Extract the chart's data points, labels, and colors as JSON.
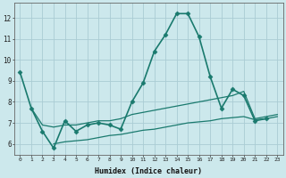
{
  "title": "",
  "xlabel": "Humidex (Indice chaleur)",
  "ylabel": "",
  "bg_color": "#cce8ec",
  "grid_color": "#aaccd4",
  "line_color": "#1a7a6e",
  "xlim": [
    -0.5,
    23.5
  ],
  "ylim": [
    5.5,
    12.7
  ],
  "yticks": [
    6,
    7,
    8,
    9,
    10,
    11,
    12
  ],
  "xticks": [
    0,
    1,
    2,
    3,
    4,
    5,
    6,
    7,
    8,
    9,
    10,
    11,
    12,
    13,
    14,
    15,
    16,
    17,
    18,
    19,
    20,
    21,
    22,
    23
  ],
  "series": [
    {
      "x": [
        0,
        1,
        2,
        3,
        4,
        5,
        6,
        7,
        8,
        9,
        10,
        11,
        12,
        13,
        14,
        15,
        16,
        17,
        18,
        19,
        20,
        21,
        22
      ],
      "y": [
        9.4,
        7.7,
        6.6,
        5.8,
        7.1,
        6.6,
        6.9,
        7.0,
        6.9,
        6.7,
        8.0,
        8.9,
        10.4,
        11.2,
        12.2,
        12.2,
        11.1,
        9.2,
        7.7,
        8.6,
        8.3,
        7.1,
        7.2
      ],
      "marker": "D",
      "markersize": 2.5,
      "linewidth": 1.2
    },
    {
      "x": [
        1,
        2,
        3,
        4,
        5,
        6,
        7,
        8,
        9,
        10,
        11,
        12,
        13,
        14,
        15,
        16,
        17,
        18,
        19,
        20,
        21,
        22,
        23
      ],
      "y": [
        7.7,
        6.9,
        6.8,
        6.9,
        6.9,
        7.0,
        7.1,
        7.1,
        7.2,
        7.4,
        7.5,
        7.6,
        7.7,
        7.8,
        7.9,
        8.0,
        8.1,
        8.2,
        8.3,
        8.5,
        7.2,
        7.3,
        7.4
      ],
      "marker": null,
      "markersize": 0,
      "linewidth": 0.9
    },
    {
      "x": [
        3,
        4,
        5,
        6,
        7,
        8,
        9,
        10,
        11,
        12,
        13,
        14,
        15,
        16,
        17,
        18,
        19,
        20,
        21,
        22,
        23
      ],
      "y": [
        6.0,
        6.1,
        6.15,
        6.2,
        6.3,
        6.4,
        6.45,
        6.55,
        6.65,
        6.7,
        6.8,
        6.9,
        7.0,
        7.05,
        7.1,
        7.2,
        7.25,
        7.3,
        7.15,
        7.2,
        7.3
      ],
      "marker": null,
      "markersize": 0,
      "linewidth": 0.9
    }
  ]
}
